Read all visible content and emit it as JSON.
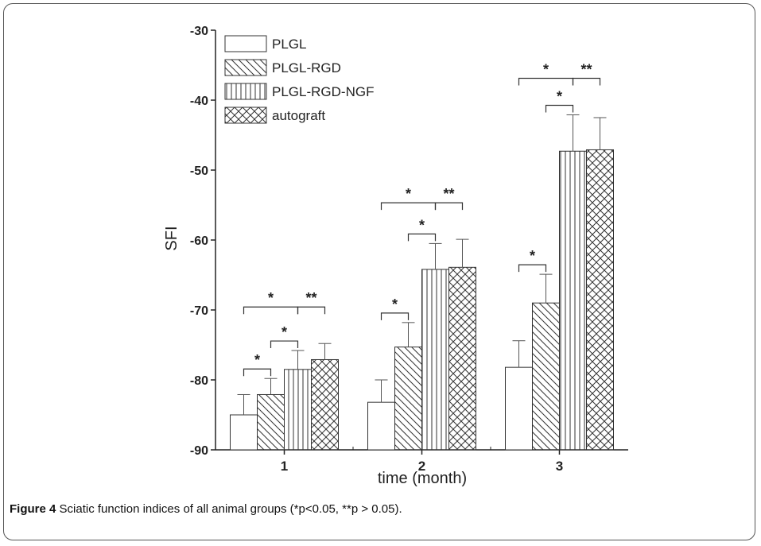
{
  "figure": {
    "label": "Figure 4",
    "caption": "Sciatic function indices of all animal groups (*p<0.05, **p > 0.05)."
  },
  "chart_data": {
    "type": "bar",
    "xlabel": "time (month)",
    "ylabel": "SFI",
    "ylim": [
      -90,
      -30
    ],
    "yticks": [
      -30,
      -40,
      -50,
      -60,
      -70,
      -80,
      -90
    ],
    "categories": [
      "1",
      "2",
      "3"
    ],
    "legend_placement": "top-left",
    "series": [
      {
        "name": "PLGL",
        "pattern": "none",
        "values": [
          -85,
          -83.2,
          -78.2
        ],
        "errors": [
          2.9,
          3.2,
          3.8
        ]
      },
      {
        "name": "PLGL-RGD",
        "pattern": "diagonal",
        "values": [
          -82.1,
          -75.3,
          -69
        ],
        "errors": [
          2.3,
          3.5,
          4.1
        ]
      },
      {
        "name": "PLGL-RGD-NGF",
        "pattern": "vertical",
        "values": [
          -78.5,
          -64.2,
          -47.3
        ],
        "errors": [
          2.7,
          3.7,
          5.2
        ]
      },
      {
        "name": "autograft",
        "pattern": "crosshatch",
        "values": [
          -77.1,
          -63.9,
          -47.1
        ],
        "errors": [
          2.3,
          4.0,
          4.6
        ]
      }
    ],
    "significance": [
      {
        "category": 0,
        "from": 0,
        "to": 1,
        "label": "*"
      },
      {
        "category": 0,
        "from": 1,
        "to": 2,
        "label": "*"
      },
      {
        "category": 0,
        "from": 0,
        "to": 2,
        "label": "*"
      },
      {
        "category": 0,
        "from": 2,
        "to": 3,
        "label": "**"
      },
      {
        "category": 1,
        "from": 0,
        "to": 1,
        "label": "*"
      },
      {
        "category": 1,
        "from": 1,
        "to": 2,
        "label": "*"
      },
      {
        "category": 1,
        "from": 0,
        "to": 2,
        "label": "*"
      },
      {
        "category": 1,
        "from": 2,
        "to": 3,
        "label": "**"
      },
      {
        "category": 2,
        "from": 0,
        "to": 1,
        "label": "*"
      },
      {
        "category": 2,
        "from": 1,
        "to": 2,
        "label": "*"
      },
      {
        "category": 2,
        "from": 0,
        "to": 2,
        "label": "*"
      },
      {
        "category": 2,
        "from": 2,
        "to": 3,
        "label": "**"
      }
    ]
  }
}
